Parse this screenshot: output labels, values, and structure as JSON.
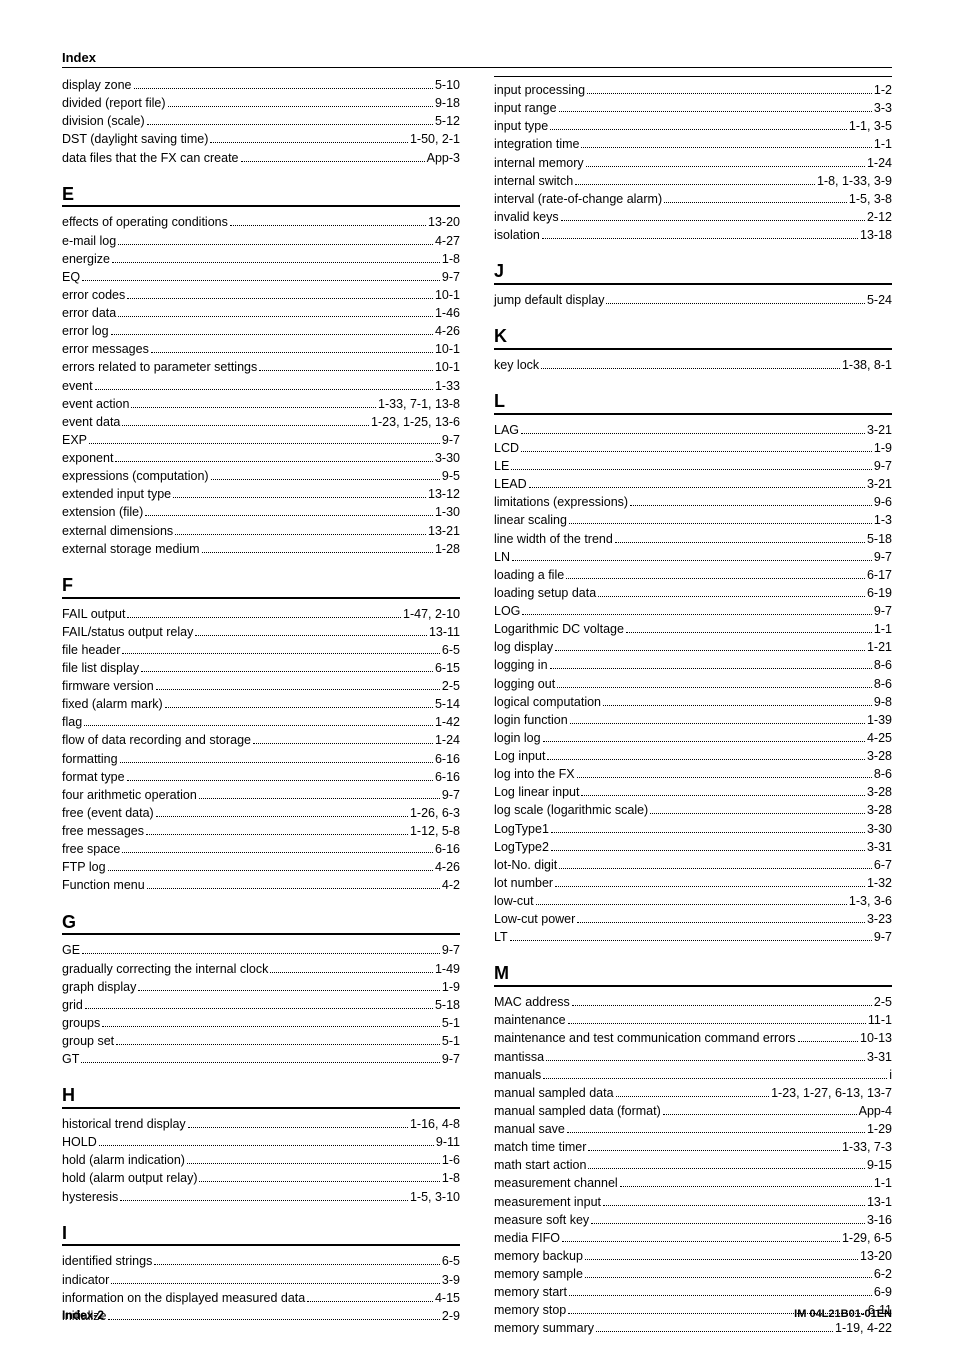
{
  "header": {
    "title": "Index"
  },
  "footer": {
    "left": "Index-2",
    "right": "IM 04L21B01-01EN"
  },
  "left_sections": [
    {
      "heading": null,
      "entries": [
        {
          "t": "display zone",
          "p": "5-10"
        },
        {
          "t": "divided (report file)",
          "p": "9-18"
        },
        {
          "t": "division (scale)",
          "p": "5-12"
        },
        {
          "t": "DST (daylight saving time)",
          "p": "1-50,  2-1"
        },
        {
          "t": "data files that the FX can create",
          "p": "App-3"
        }
      ]
    },
    {
      "heading": "E",
      "entries": [
        {
          "t": "effects of operating conditions",
          "p": "13-20"
        },
        {
          "t": "e-mail log",
          "p": "4-27"
        },
        {
          "t": "energize",
          "p": "1-8"
        },
        {
          "t": "EQ",
          "p": "9-7"
        },
        {
          "t": "error codes",
          "p": "10-1"
        },
        {
          "t": "error data",
          "p": "1-46"
        },
        {
          "t": "error log",
          "p": "4-26"
        },
        {
          "t": "error messages",
          "p": "10-1"
        },
        {
          "t": "errors related to parameter settings",
          "p": "10-1"
        },
        {
          "t": "event",
          "p": "1-33"
        },
        {
          "t": "event action",
          "p": "1-33,  7-1,  13-8"
        },
        {
          "t": "event data",
          "p": "1-23,  1-25,  13-6"
        },
        {
          "t": "EXP",
          "p": "9-7"
        },
        {
          "t": "exponent",
          "p": "3-30"
        },
        {
          "t": "expressions (computation)",
          "p": "9-5"
        },
        {
          "t": "extended input type",
          "p": "13-12"
        },
        {
          "t": "extension (file)",
          "p": "1-30"
        },
        {
          "t": "external dimensions",
          "p": "13-21"
        },
        {
          "t": "external storage medium",
          "p": "1-28"
        }
      ]
    },
    {
      "heading": "F",
      "entries": [
        {
          "t": "FAIL output",
          "p": "1-47,  2-10"
        },
        {
          "t": "FAIL/status output relay",
          "p": "13-11"
        },
        {
          "t": "file header",
          "p": "6-5"
        },
        {
          "t": "file list display",
          "p": "6-15"
        },
        {
          "t": "firmware version",
          "p": "2-5"
        },
        {
          "t": "fixed (alarm mark)",
          "p": "5-14"
        },
        {
          "t": "flag",
          "p": "1-42"
        },
        {
          "t": "flow of data recording and storage",
          "p": "1-24"
        },
        {
          "t": "formatting",
          "p": "6-16"
        },
        {
          "t": "format type",
          "p": "6-16"
        },
        {
          "t": "four arithmetic operation",
          "p": "9-7"
        },
        {
          "t": "free (event data)",
          "p": "1-26,  6-3"
        },
        {
          "t": "free messages",
          "p": "1-12,  5-8"
        },
        {
          "t": "free space",
          "p": "6-16"
        },
        {
          "t": "FTP log",
          "p": "4-26"
        },
        {
          "t": "Function menu",
          "p": "4-2"
        }
      ]
    },
    {
      "heading": "G",
      "entries": [
        {
          "t": "GE",
          "p": "9-7"
        },
        {
          "t": "gradually correcting the internal clock",
          "p": "1-49"
        },
        {
          "t": "graph display",
          "p": "1-9"
        },
        {
          "t": "grid",
          "p": "5-18"
        },
        {
          "t": "groups",
          "p": "5-1"
        },
        {
          "t": "group set",
          "p": "5-1"
        },
        {
          "t": "GT",
          "p": "9-7"
        }
      ]
    },
    {
      "heading": "H",
      "entries": [
        {
          "t": "historical trend display",
          "p": "1-16,  4-8"
        },
        {
          "t": "HOLD",
          "p": "9-11"
        },
        {
          "t": "hold (alarm indication)",
          "p": "1-6"
        },
        {
          "t": "hold (alarm output relay)",
          "p": "1-8"
        },
        {
          "t": "hysteresis",
          "p": "1-5,  3-10"
        }
      ]
    },
    {
      "heading": "I",
      "entries": [
        {
          "t": "identified strings",
          "p": "6-5"
        },
        {
          "t": "indicator",
          "p": "3-9"
        },
        {
          "t": "information on the displayed measured data",
          "p": "4-15"
        },
        {
          "t": "initialize",
          "p": "2-9"
        }
      ]
    }
  ],
  "right_sections": [
    {
      "heading": null,
      "entries": [
        {
          "t": "input processing",
          "p": "1-2"
        },
        {
          "t": "input range",
          "p": "3-3"
        },
        {
          "t": "input type",
          "p": "1-1,  3-5"
        },
        {
          "t": "integration time",
          "p": "1-1"
        },
        {
          "t": "internal memory",
          "p": "1-24"
        },
        {
          "t": "internal switch",
          "p": "1-8,  1-33,  3-9"
        },
        {
          "t": "interval (rate-of-change alarm)",
          "p": "1-5,  3-8"
        },
        {
          "t": "invalid keys",
          "p": "2-12"
        },
        {
          "t": "isolation",
          "p": "13-18"
        }
      ]
    },
    {
      "heading": "J",
      "entries": [
        {
          "t": "jump default display",
          "p": "5-24"
        }
      ]
    },
    {
      "heading": "K",
      "entries": [
        {
          "t": "key lock",
          "p": "1-38,  8-1"
        }
      ]
    },
    {
      "heading": "L",
      "entries": [
        {
          "t": "LAG",
          "p": "3-21"
        },
        {
          "t": "LCD",
          "p": "1-9"
        },
        {
          "t": "LE",
          "p": "9-7"
        },
        {
          "t": "LEAD",
          "p": "3-21"
        },
        {
          "t": "limitations (expressions)",
          "p": "9-6"
        },
        {
          "t": "linear scaling",
          "p": "1-3"
        },
        {
          "t": "line width of the trend",
          "p": "5-18"
        },
        {
          "t": "LN",
          "p": "9-7"
        },
        {
          "t": "loading a file",
          "p": "6-17"
        },
        {
          "t": "loading setup data",
          "p": "6-19"
        },
        {
          "t": "LOG",
          "p": "9-7"
        },
        {
          "t": "Logarithmic DC voltage",
          "p": "1-1"
        },
        {
          "t": "log display",
          "p": "1-21"
        },
        {
          "t": "logging in",
          "p": "8-6"
        },
        {
          "t": "logging out",
          "p": "8-6"
        },
        {
          "t": "logical computation",
          "p": "9-8"
        },
        {
          "t": "login function",
          "p": "1-39"
        },
        {
          "t": "login log",
          "p": "4-25"
        },
        {
          "t": "Log input",
          "p": "3-28"
        },
        {
          "t": "log into the FX",
          "p": "8-6"
        },
        {
          "t": "Log linear input",
          "p": "3-28"
        },
        {
          "t": "log scale (logarithmic scale)",
          "p": "3-28"
        },
        {
          "t": "LogType1",
          "p": "3-30"
        },
        {
          "t": "LogType2",
          "p": "3-31"
        },
        {
          "t": "lot-No. digit",
          "p": "6-7"
        },
        {
          "t": "lot number",
          "p": "1-32"
        },
        {
          "t": "low-cut",
          "p": "1-3,  3-6"
        },
        {
          "t": "Low-cut power",
          "p": "3-23"
        },
        {
          "t": "LT",
          "p": "9-7"
        }
      ]
    },
    {
      "heading": "M",
      "entries": [
        {
          "t": "MAC address",
          "p": "2-5"
        },
        {
          "t": "maintenance",
          "p": "11-1"
        },
        {
          "t": "maintenance and test communication command errors",
          "p": "10-13"
        },
        {
          "t": "mantissa",
          "p": "3-31"
        },
        {
          "t": "manuals",
          "p": "i"
        },
        {
          "t": "manual sampled data",
          "p": "1-23,  1-27,  6-13,  13-7"
        },
        {
          "t": "manual sampled data (format)",
          "p": "App-4"
        },
        {
          "t": "manual save",
          "p": "1-29"
        },
        {
          "t": "match time timer",
          "p": "1-33,  7-3"
        },
        {
          "t": "math start action",
          "p": "9-15"
        },
        {
          "t": "measurement channel",
          "p": "1-1"
        },
        {
          "t": "measurement input",
          "p": "13-1"
        },
        {
          "t": "measure soft key",
          "p": "3-16"
        },
        {
          "t": "media FIFO",
          "p": "1-29,  6-5"
        },
        {
          "t": "memory backup",
          "p": "13-20"
        },
        {
          "t": "memory sample",
          "p": "6-2"
        },
        {
          "t": "memory start",
          "p": "6-9"
        },
        {
          "t": "memory stop",
          "p": "6-11"
        },
        {
          "t": "memory summary",
          "p": "1-19,  4-22"
        }
      ]
    }
  ]
}
